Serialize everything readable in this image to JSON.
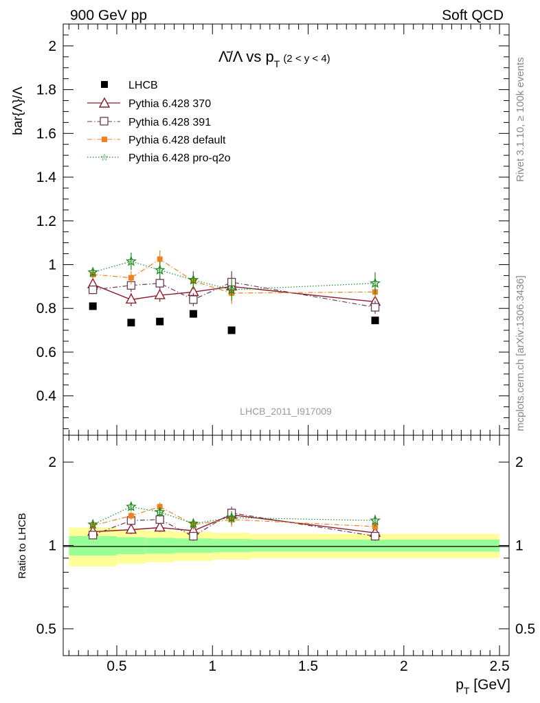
{
  "header": {
    "left": "900 GeV pp",
    "right": "Soft QCD"
  },
  "side_text": {
    "rivet": "Rivet 3.1.10, ≥ 100k events",
    "source": "mcplots.cern.ch [arXiv:1306.3436]"
  },
  "colors": {
    "data": "#000000",
    "s370": "#8b1a2b",
    "s391": "#6b3a4e",
    "sdefault": "#f08020",
    "sproq2o": "#1a8a1a",
    "band_inner": "#99ff99",
    "band_outer": "#ffff99"
  },
  "chart_data": [
    {
      "type": "scatter",
      "title_main": "Λ̄/Λ vs p",
      "title_sub": "T",
      "title_range": "(2 < y < 4)",
      "ylabel": "bar{Λ}/Λ",
      "analysis_id": "LHCB_2011_I917009",
      "xlim": [
        0.22,
        2.55
      ],
      "ylim": [
        0.22,
        2.1
      ],
      "yticks": [
        0.4,
        0.6,
        0.8,
        1,
        1.2,
        1.4,
        1.6,
        1.8,
        2
      ],
      "yticklabels": [
        "0.4",
        "0.6",
        "0.8",
        "1",
        "1.2",
        "1.4",
        "1.6",
        "1.8",
        "2"
      ],
      "legend": [
        "LHCB",
        "Pythia 6.428 370",
        "Pythia 6.428 391",
        "Pythia 6.428 default",
        "Pythia 6.428 pro-q2o"
      ],
      "series": [
        {
          "name": "LHCB",
          "x": [
            0.375,
            0.575,
            0.725,
            0.9,
            1.1,
            1.85
          ],
          "y": [
            0.81,
            0.735,
            0.74,
            0.775,
            0.7,
            0.745
          ]
        },
        {
          "name": "Pythia 6.428 370",
          "x": [
            0.375,
            0.575,
            0.725,
            0.9,
            1.1,
            1.85
          ],
          "y": [
            0.91,
            0.84,
            0.86,
            0.875,
            0.9,
            0.83
          ],
          "err": [
            0.02,
            0.03,
            0.03,
            0.03,
            0.04,
            0.03
          ]
        },
        {
          "name": "Pythia 6.428 391",
          "x": [
            0.375,
            0.575,
            0.725,
            0.9,
            1.1,
            1.85
          ],
          "y": [
            0.885,
            0.905,
            0.915,
            0.84,
            0.92,
            0.805
          ],
          "err": [
            0.02,
            0.03,
            0.03,
            0.03,
            0.05,
            0.03
          ]
        },
        {
          "name": "Pythia 6.428 default",
          "x": [
            0.375,
            0.575,
            0.725,
            0.9,
            1.1,
            1.85
          ],
          "y": [
            0.955,
            0.94,
            1.025,
            0.925,
            0.87,
            0.875
          ],
          "err": [
            0.02,
            0.03,
            0.04,
            0.04,
            0.05,
            0.03
          ]
        },
        {
          "name": "Pythia 6.428 pro-q2o",
          "x": [
            0.375,
            0.575,
            0.725,
            0.9,
            1.1,
            1.85
          ],
          "y": [
            0.965,
            1.015,
            0.975,
            0.93,
            0.885,
            0.915
          ],
          "err": [
            0.02,
            0.04,
            0.04,
            0.04,
            0.05,
            0.05
          ]
        }
      ]
    },
    {
      "type": "scatter",
      "ylabel": "Ratio to LHCB",
      "xlabel": "p",
      "xlabel_sub": "T",
      "xlabel_unit": " [GeV]",
      "xlim": [
        0.22,
        2.55
      ],
      "ylim": [
        0.4,
        2.5
      ],
      "yscale": "log",
      "yticks": [
        0.5,
        1,
        2
      ],
      "yticklabels": [
        "0.5",
        "1",
        "2"
      ],
      "xticks": [
        0.5,
        1,
        1.5,
        2,
        2.5
      ],
      "xticklabels": [
        "0.5",
        "1",
        "1.5",
        "2",
        "2.5"
      ],
      "reference_band": {
        "edges": [
          0.25,
          0.5,
          0.65,
          0.8,
          1.0,
          1.2,
          2.5
        ],
        "inner": [
          0.08,
          0.07,
          0.065,
          0.06,
          0.055,
          0.05
        ],
        "outer": [
          0.16,
          0.14,
          0.13,
          0.12,
          0.11,
          0.1
        ]
      },
      "series": [
        {
          "name": "Pythia 6.428 370",
          "x": [
            0.375,
            0.575,
            0.725,
            0.9,
            1.1,
            1.85
          ],
          "y": [
            1.12,
            1.14,
            1.16,
            1.13,
            1.29,
            1.11
          ],
          "err": [
            0.03,
            0.04,
            0.04,
            0.04,
            0.06,
            0.04
          ]
        },
        {
          "name": "Pythia 6.428 391",
          "x": [
            0.375,
            0.575,
            0.725,
            0.9,
            1.1,
            1.85
          ],
          "y": [
            1.09,
            1.23,
            1.24,
            1.08,
            1.31,
            1.08
          ],
          "err": [
            0.03,
            0.04,
            0.04,
            0.04,
            0.07,
            0.04
          ]
        },
        {
          "name": "Pythia 6.428 default",
          "x": [
            0.375,
            0.575,
            0.725,
            0.9,
            1.1,
            1.85
          ],
          "y": [
            1.18,
            1.28,
            1.38,
            1.19,
            1.24,
            1.17
          ],
          "err": [
            0.03,
            0.04,
            0.05,
            0.05,
            0.07,
            0.04
          ]
        },
        {
          "name": "Pythia 6.428 pro-q2o",
          "x": [
            0.375,
            0.575,
            0.725,
            0.9,
            1.1,
            1.85
          ],
          "y": [
            1.19,
            1.38,
            1.32,
            1.2,
            1.26,
            1.23
          ],
          "err": [
            0.03,
            0.05,
            0.05,
            0.05,
            0.07,
            0.06
          ]
        }
      ]
    }
  ]
}
